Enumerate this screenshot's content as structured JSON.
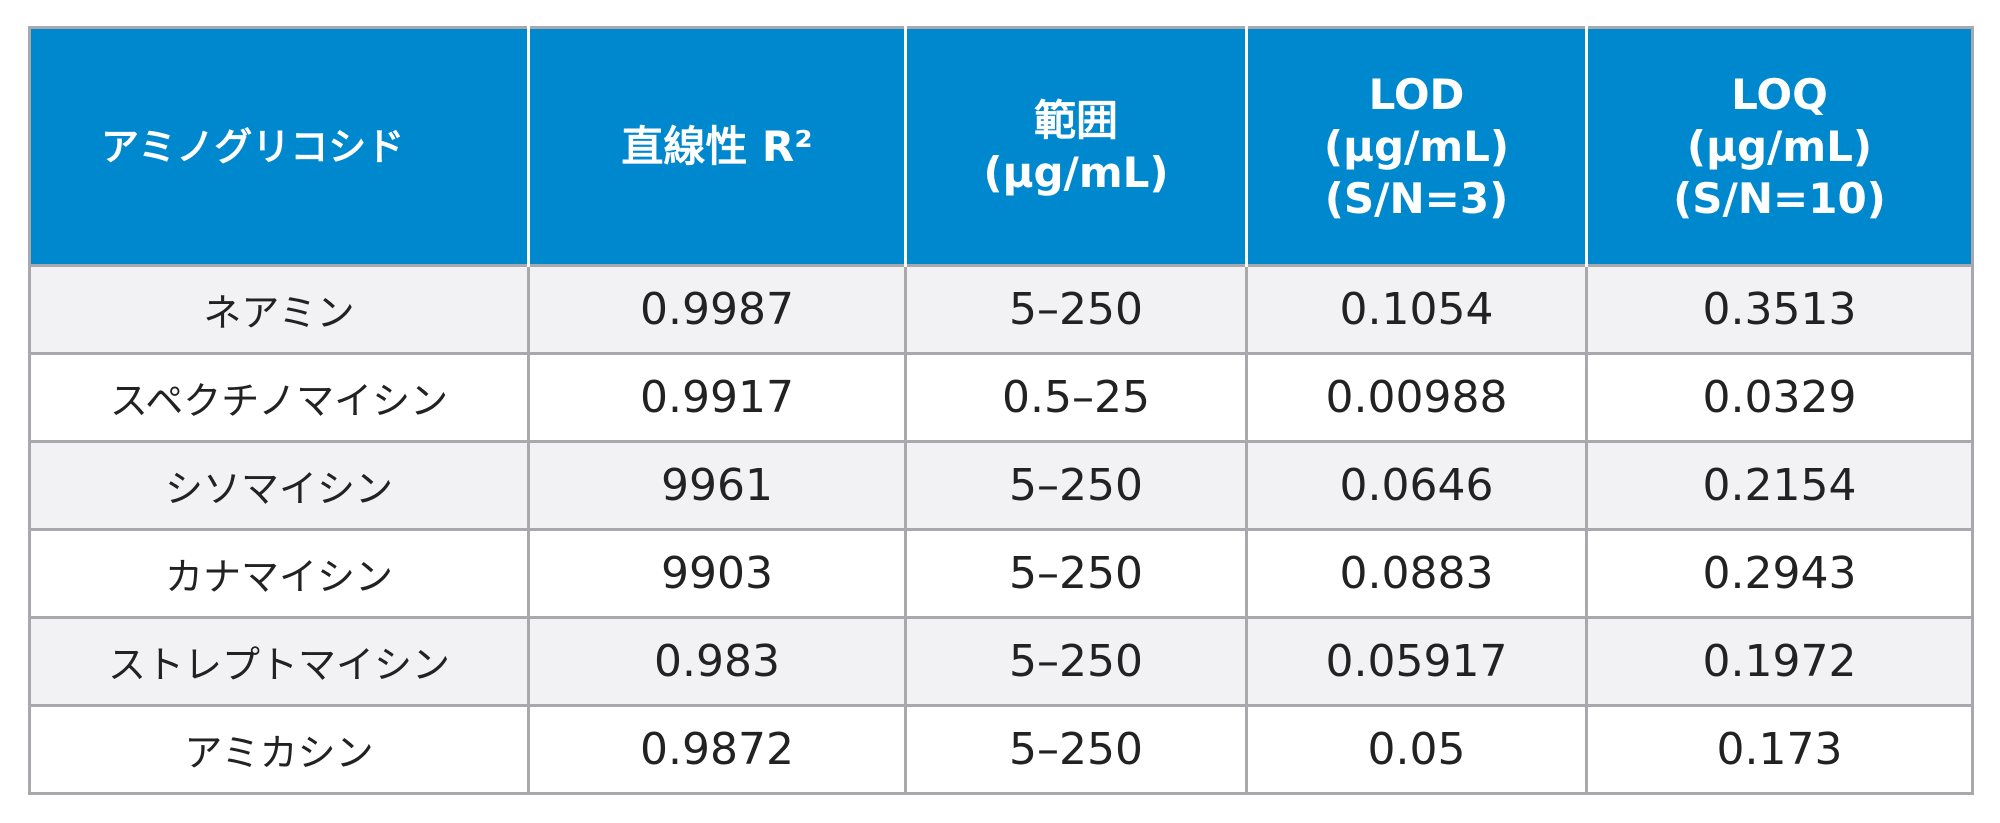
{
  "table": {
    "header": [
      [
        "アミノグリコシド"
      ],
      [
        "直線性 R²"
      ],
      [
        "範囲",
        "(µg/mL)"
      ],
      [
        "LOD",
        "(µg/mL)",
        "(S/N=3)"
      ],
      [
        "LOQ",
        "(µg/mL)",
        "(S/N=10)"
      ]
    ],
    "rows": [
      [
        "ネアミン",
        "0.9987",
        "5–250",
        "0.1054",
        "0.3513"
      ],
      [
        "スペクチノマイシン",
        "0.9917",
        "0.5–25",
        "0.00988",
        "0.0329"
      ],
      [
        "シソマイシン",
        "9961",
        "5–250",
        "0.0646",
        "0.2154"
      ],
      [
        "カナマイシン",
        "9903",
        "5–250",
        "0.0883",
        "0.2943"
      ],
      [
        "ストレプトマイシン",
        "0.983",
        "5–250",
        "0.05917",
        "0.1972"
      ],
      [
        "アミカシン",
        "0.9872",
        "5–250",
        "0.05",
        "0.173"
      ]
    ]
  }
}
